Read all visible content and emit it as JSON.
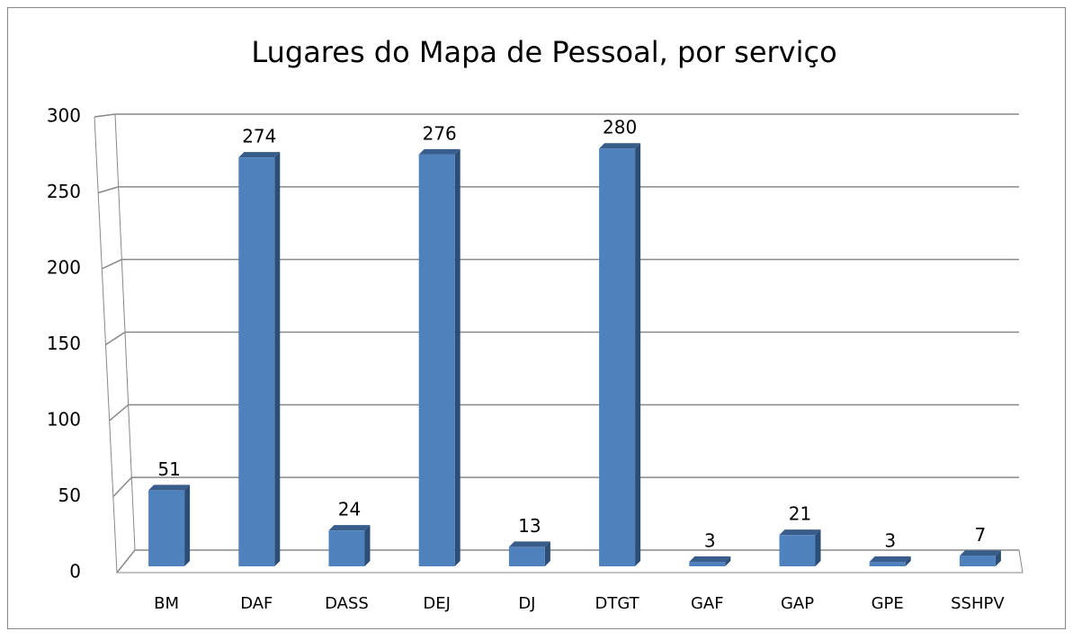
{
  "chart_data": {
    "type": "bar",
    "title": "Lugares do Mapa de Pessoal, por serviço",
    "categories": [
      "BM",
      "DAF",
      "DASS",
      "DEJ",
      "DJ",
      "DTGT",
      "GAF",
      "GAP",
      "GPE",
      "SSHPV"
    ],
    "values": [
      51,
      274,
      24,
      276,
      13,
      280,
      3,
      21,
      3,
      7
    ],
    "color": "#4f81bd",
    "ylim": [
      0,
      300
    ],
    "yticks": [
      0,
      50,
      100,
      150,
      200,
      250,
      300
    ],
    "grid": true
  }
}
